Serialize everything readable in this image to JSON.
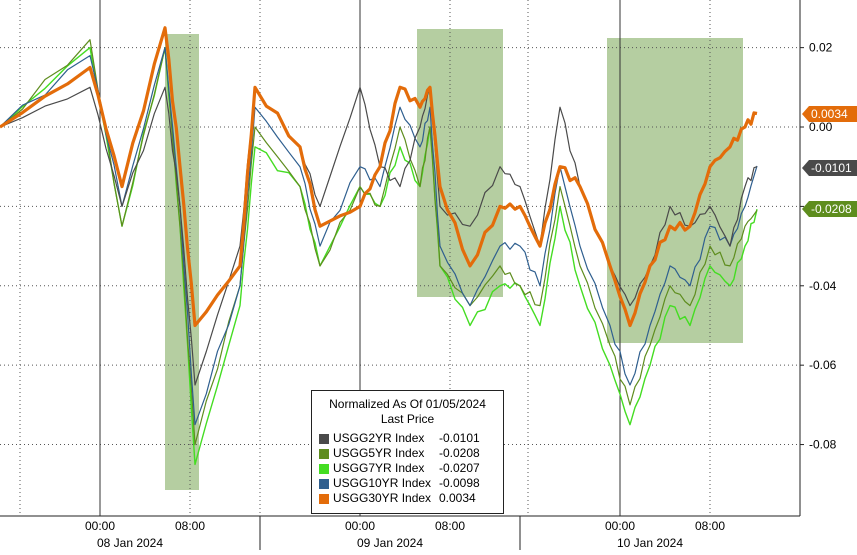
{
  "chart_data": {
    "type": "line",
    "legend": {
      "title_line1": "Normalized As Of 01/05/2024",
      "title_line2": "Last Price",
      "placement": "bottom-center"
    },
    "series": [
      {
        "name": "USGG2YR Index",
        "last_label": "-0.0101",
        "last": -0.0101,
        "color": "#4a4a4a",
        "y_tag": "-0.0101",
        "values": [
          0.0,
          0.01,
          -0.02,
          0.01,
          -0.02,
          -0.065,
          -0.03,
          0.01,
          -0.005,
          -0.02,
          0.01,
          -0.01,
          -0.015,
          0.0,
          0.01,
          -0.02,
          -0.025,
          -0.01,
          -0.015,
          -0.03,
          0.005,
          -0.015,
          -0.035,
          -0.045,
          -0.035,
          -0.02,
          -0.025,
          -0.02,
          -0.03,
          -0.015,
          -0.01
        ]
      },
      {
        "name": "USGG5YR Index",
        "last_label": "-0.0208",
        "last": -0.0208,
        "color": "#5e8d1e",
        "y_tag": "-0.0208",
        "values": [
          0.0,
          0.022,
          -0.025,
          0.02,
          -0.025,
          -0.08,
          -0.04,
          0.0,
          -0.015,
          -0.035,
          -0.015,
          -0.02,
          0.0,
          -0.015,
          0.0,
          -0.035,
          -0.045,
          -0.035,
          -0.04,
          -0.045,
          -0.015,
          -0.035,
          -0.055,
          -0.07,
          -0.055,
          -0.04,
          -0.045,
          -0.03,
          -0.035,
          -0.025,
          -0.021
        ]
      },
      {
        "name": "USGG7YR Index",
        "last_label": "-0.0207",
        "last": -0.0207,
        "color": "#44dd22",
        "values": [
          0.0,
          0.02,
          -0.025,
          0.02,
          -0.025,
          -0.085,
          -0.045,
          -0.005,
          -0.015,
          -0.035,
          -0.015,
          -0.02,
          -0.005,
          -0.015,
          0.0,
          -0.035,
          -0.05,
          -0.04,
          -0.04,
          -0.05,
          -0.02,
          -0.04,
          -0.06,
          -0.075,
          -0.06,
          -0.045,
          -0.05,
          -0.035,
          -0.04,
          -0.03,
          -0.0207
        ]
      },
      {
        "name": "USGG10YR Index",
        "last_label": "-0.0098",
        "last": -0.0098,
        "color": "#2f5f8f",
        "values": [
          0.0,
          0.018,
          -0.02,
          0.02,
          -0.02,
          -0.075,
          -0.04,
          0.005,
          -0.01,
          -0.03,
          -0.01,
          -0.015,
          0.005,
          -0.005,
          0.005,
          -0.03,
          -0.045,
          -0.03,
          -0.03,
          -0.04,
          -0.01,
          -0.03,
          -0.05,
          -0.065,
          -0.05,
          -0.035,
          -0.04,
          -0.025,
          -0.03,
          -0.02,
          -0.0098
        ]
      },
      {
        "name": "USGG30YR Index",
        "last_label": "0.0034",
        "last": 0.0034,
        "color": "#e36c0a",
        "y_tag": "0.0034",
        "values": [
          0.0,
          0.015,
          -0.015,
          0.025,
          -0.01,
          -0.05,
          -0.035,
          0.01,
          -0.005,
          -0.025,
          -0.02,
          -0.01,
          0.01,
          0.005,
          0.01,
          -0.015,
          -0.035,
          -0.02,
          -0.02,
          -0.03,
          -0.01,
          -0.015,
          -0.035,
          -0.05,
          -0.035,
          -0.025,
          -0.025,
          -0.01,
          -0.005,
          0.0,
          0.0034
        ]
      }
    ],
    "y_ticks": [
      "0.02",
      "0.00",
      "-0.02",
      "-0.04",
      "-0.06",
      "-0.08"
    ],
    "y_tick_values": [
      0.02,
      0.0,
      -0.02,
      -0.04,
      -0.06,
      -0.08
    ],
    "ylim": [
      -0.098,
      0.032
    ],
    "x_time_labels": [
      "00:00",
      "08:00",
      "00:00",
      "08:00",
      "00:00",
      "08:00"
    ],
    "x_date_labels": [
      "08 Jan 2024",
      "09 Jan 2024",
      "10 Jan 2024"
    ],
    "grid": true,
    "highlight_color": "#a8c690"
  }
}
